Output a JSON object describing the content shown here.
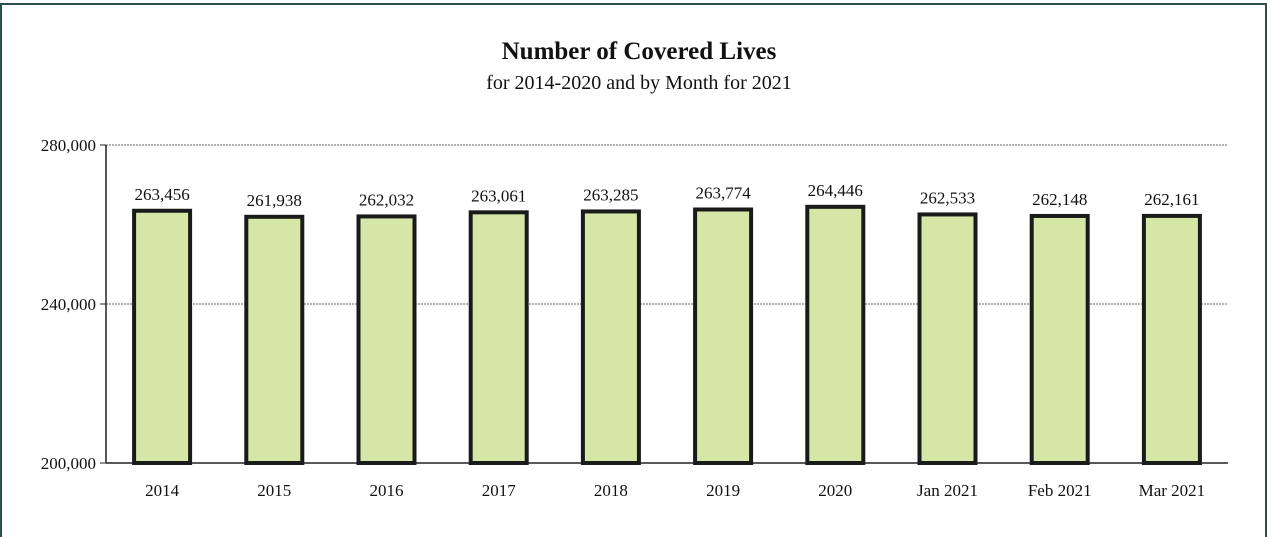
{
  "chart_data": {
    "type": "bar",
    "title": "Number of Covered Lives",
    "subtitle": "for 2014-2020 and by Month for 2021",
    "xlabel": "",
    "ylabel": "",
    "categories": [
      "2014",
      "2015",
      "2016",
      "2017",
      "2018",
      "2019",
      "2020",
      "Jan 2021",
      "Feb 2021",
      "Mar 2021"
    ],
    "values": [
      263456,
      261938,
      262032,
      263061,
      263285,
      263774,
      264446,
      262533,
      262148,
      262161
    ],
    "value_labels": [
      "263,456",
      "261,938",
      "262,032",
      "263,061",
      "263,285",
      "263,774",
      "264,446",
      "262,533",
      "262,148",
      "262,161"
    ],
    "ylim": [
      200000,
      280000
    ],
    "yticks": [
      200000,
      240000,
      280000
    ],
    "ytick_labels": [
      "200,000",
      "240,000",
      "280,000"
    ],
    "grid": true,
    "legend": "none",
    "colors": {
      "bar_fill": "#d5e6a6",
      "bar_stroke": "#1a1a1a",
      "grid": "#666666",
      "frame": "#2f4f4f"
    }
  }
}
